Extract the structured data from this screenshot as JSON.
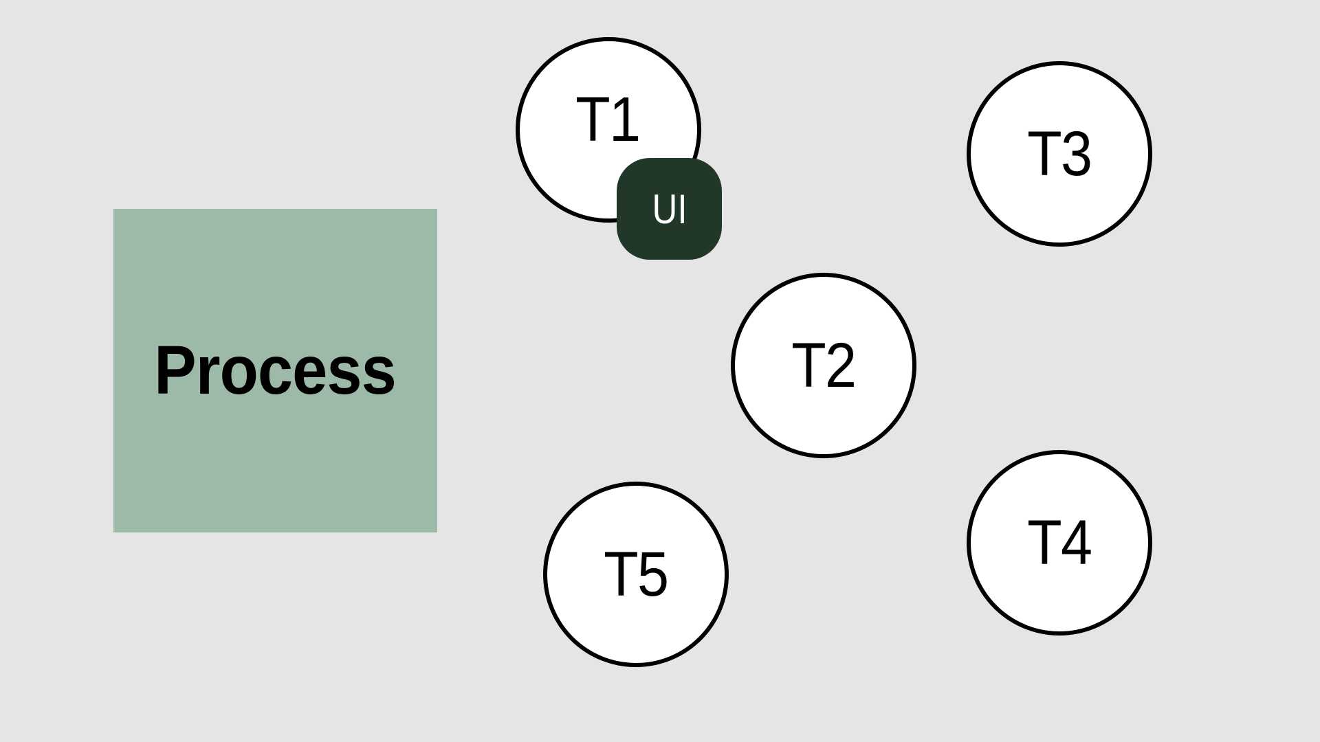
{
  "process": {
    "label": "Process",
    "color": "#9dbaa8"
  },
  "threads": [
    {
      "id": "t1",
      "label": "T1"
    },
    {
      "id": "t2",
      "label": "T2"
    },
    {
      "id": "t3",
      "label": "T3"
    },
    {
      "id": "t4",
      "label": "T4"
    },
    {
      "id": "t5",
      "label": "T5"
    }
  ],
  "ui_badge": {
    "label": "UI",
    "attached_to": "T1",
    "color": "#213829"
  },
  "colors": {
    "background": "#e5e5e5",
    "thread_fill": "#ffffff",
    "thread_stroke": "#000000"
  }
}
